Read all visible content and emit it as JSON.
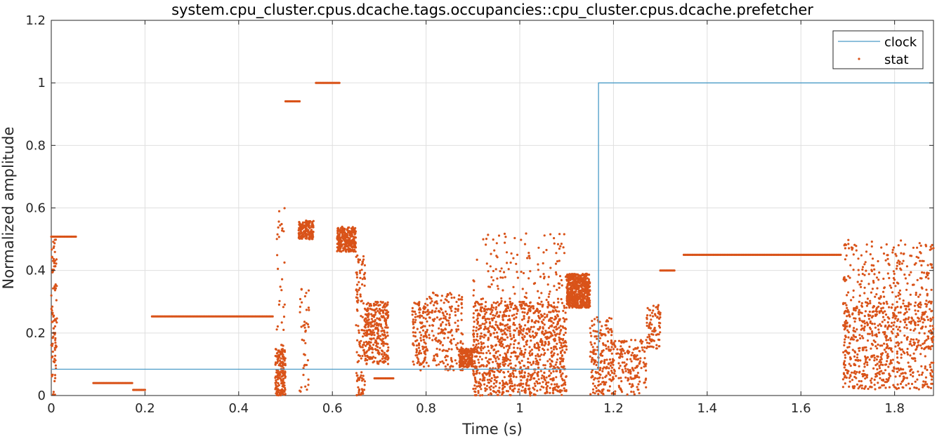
{
  "chart_data": {
    "type": "line",
    "title": "system.cpu_cluster.cpus.dcache.tags.occupancies::cpu_cluster.cpus.dcache.prefetcher",
    "xlabel": "Time (s)",
    "ylabel": "Normalized amplitude",
    "xlim": [
      0,
      1.883
    ],
    "ylim": [
      0,
      1.2
    ],
    "xticks": [
      0,
      0.2,
      0.4,
      0.6,
      0.8,
      1,
      1.2,
      1.4,
      1.6,
      1.8
    ],
    "xtick_labels": [
      "0",
      "0.2",
      "0.4",
      "0.6",
      "0.8",
      "1",
      "1.2",
      "1.4",
      "1.6",
      "1.8"
    ],
    "yticks": [
      0,
      0.2,
      0.4,
      0.6,
      0.8,
      1,
      1.2
    ],
    "ytick_labels": [
      "0",
      "0.2",
      "0.4",
      "0.6",
      "0.8",
      "1",
      "1.2"
    ],
    "grid": true,
    "legend_position": "top-right",
    "series": [
      {
        "name": "clock",
        "style": "line",
        "color": "#4a9bc7",
        "x": [
          0,
          1.168,
          1.168,
          1.883
        ],
        "y": [
          0.084,
          0.084,
          1.0,
          1.0
        ]
      },
      {
        "name": "stat",
        "style": "dots",
        "color": "#d95319",
        "segments": [
          {
            "x": [
              0.0,
              0.055
            ],
            "y": 0.508
          },
          {
            "x": [
              0.09,
              0.175
            ],
            "y": 0.04
          },
          {
            "x": [
              0.175,
              0.2
            ],
            "y": 0.018
          },
          {
            "x": [
              0.215,
              0.475
            ],
            "y": 0.253
          },
          {
            "x": [
              0.5,
              0.53
            ],
            "y": 0.941
          },
          {
            "x": [
              0.565,
              0.615
            ],
            "y": 1.0
          },
          {
            "x": [
              0.69,
              0.73
            ],
            "y": 0.055
          },
          {
            "x": [
              1.3,
              1.33
            ],
            "y": 0.4
          },
          {
            "x": [
              1.35,
              1.685
            ],
            "y": 0.45
          }
        ],
        "clusters": [
          {
            "x": [
              0.0,
              0.012
            ],
            "y": [
              0.0,
              0.5
            ],
            "n": 90
          },
          {
            "x": [
              0.478,
              0.5
            ],
            "y": [
              0.0,
              0.15
            ],
            "n": 160
          },
          {
            "x": [
              0.48,
              0.5
            ],
            "y": [
              0.15,
              0.6
            ],
            "n": 30
          },
          {
            "x": [
              0.528,
              0.56
            ],
            "y": [
              0.5,
              0.56
            ],
            "n": 160
          },
          {
            "x": [
              0.53,
              0.55
            ],
            "y": [
              0.0,
              0.35
            ],
            "n": 40
          },
          {
            "x": [
              0.61,
              0.65
            ],
            "y": [
              0.46,
              0.54
            ],
            "n": 280
          },
          {
            "x": [
              0.65,
              0.67
            ],
            "y": [
              0.0,
              0.45
            ],
            "n": 120
          },
          {
            "x": [
              0.67,
              0.72
            ],
            "y": [
              0.1,
              0.3
            ],
            "n": 300
          },
          {
            "x": [
              0.77,
              0.8
            ],
            "y": [
              0.08,
              0.3
            ],
            "n": 120
          },
          {
            "x": [
              0.8,
              0.88
            ],
            "y": [
              0.08,
              0.33
            ],
            "n": 220
          },
          {
            "x": [
              0.87,
              0.9
            ],
            "y": [
              0.09,
              0.15
            ],
            "n": 180
          },
          {
            "x": [
              0.9,
              1.1
            ],
            "y": [
              0.0,
              0.3
            ],
            "n": 1100
          },
          {
            "x": [
              0.9,
              1.1
            ],
            "y": [
              0.25,
              0.52
            ],
            "n": 140
          },
          {
            "x": [
              1.1,
              1.15
            ],
            "y": [
              0.28,
              0.39
            ],
            "n": 550
          },
          {
            "x": [
              1.15,
              1.2
            ],
            "y": [
              0.0,
              0.25
            ],
            "n": 200
          },
          {
            "x": [
              1.2,
              1.27
            ],
            "y": [
              0.0,
              0.18
            ],
            "n": 160
          },
          {
            "x": [
              1.27,
              1.3
            ],
            "y": [
              0.15,
              0.29
            ],
            "n": 80
          },
          {
            "x": [
              1.69,
              1.883
            ],
            "y": [
              0.02,
              0.3
            ],
            "n": 700
          },
          {
            "x": [
              1.69,
              1.883
            ],
            "y": [
              0.3,
              0.5
            ],
            "n": 200
          }
        ]
      }
    ]
  }
}
